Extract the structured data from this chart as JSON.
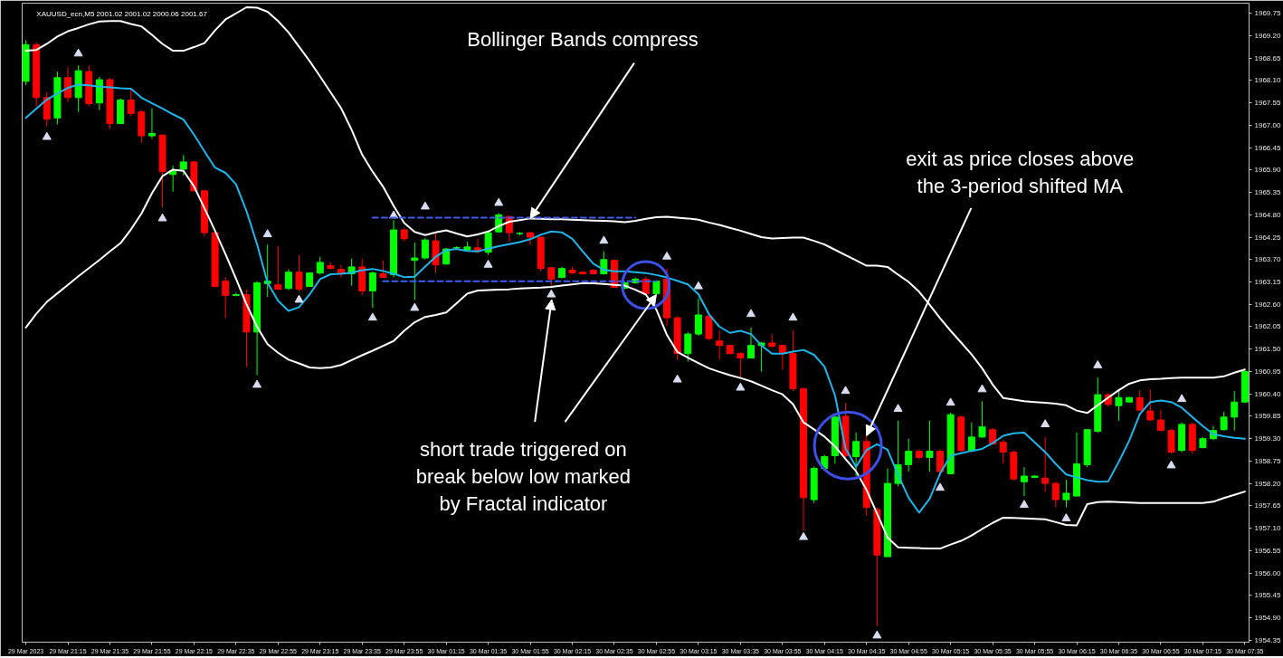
{
  "chart_data": {
    "type": "candlestick",
    "title": "XAUUSD_ecn,M5  2001.02 2001.02 2000.06 2001.67",
    "categories": [
      "29 Mar 2023",
      null,
      null,
      null,
      "29 Mar 21:15",
      null,
      null,
      null,
      "29 Mar 21:35",
      null,
      null,
      null,
      "29 Mar 21:55",
      null,
      null,
      null,
      "29 Mar 22:15",
      null,
      null,
      null,
      "29 Mar 22:35",
      null,
      null,
      null,
      "29 Mar 22:55",
      null,
      null,
      null,
      "29 Mar 23:15",
      null,
      null,
      null,
      "29 Mar 23:35",
      null,
      null,
      null,
      "29 Mar 23:55",
      null,
      null,
      null,
      "30 Mar 01:15",
      null,
      null,
      null,
      "30 Mar 01:35",
      null,
      null,
      null,
      "30 Mar 01:55",
      null,
      null,
      null,
      "30 Mar 02:15",
      null,
      null,
      null,
      "30 Mar 02:35",
      null,
      null,
      null,
      "30 Mar 02:55",
      null,
      null,
      null,
      "30 Mar 03:15",
      null,
      null,
      null,
      "30 Mar 03:35",
      null,
      null,
      null,
      "30 Mar 03:55",
      null,
      null,
      null,
      "30 Mar 04:15",
      null,
      null,
      null,
      "30 Mar 04:35",
      null,
      null,
      null,
      "30 Mar 04:55",
      null,
      null,
      null,
      "30 Mar 05:15",
      null,
      null,
      null,
      "30 Mar 05:35",
      null,
      null,
      null,
      "30 Mar 05:55",
      null,
      null,
      null,
      "30 Mar 06:15",
      null,
      null,
      null,
      "30 Mar 06:35",
      null,
      null,
      null,
      "30 Mar 06:55",
      null,
      null,
      null,
      "30 Mar 07:15",
      null,
      null,
      null,
      "30 Mar 07:35"
    ],
    "ohlc": [
      [
        1968.08,
        1969.09,
        1967.99,
        1968.98
      ],
      [
        1968.98,
        1969.05,
        1967.46,
        1967.68
      ],
      [
        1967.68,
        1967.81,
        1966.98,
        1967.15
      ],
      [
        1967.18,
        1968.32,
        1967.02,
        1968.17
      ],
      [
        1968.17,
        1968.43,
        1967.57,
        1967.68
      ],
      [
        1967.68,
        1968.47,
        1967.33,
        1968.34
      ],
      [
        1968.32,
        1968.47,
        1967.46,
        1967.53
      ],
      [
        1967.55,
        1968.19,
        1967.37,
        1968.12
      ],
      [
        1968.12,
        1968.17,
        1966.91,
        1967.04
      ],
      [
        1967.04,
        1967.66,
        1967.04,
        1967.62
      ],
      [
        1967.62,
        1967.88,
        1967.22,
        1967.29
      ],
      [
        1967.33,
        1967.37,
        1966.56,
        1966.74
      ],
      [
        1966.74,
        1967.42,
        1966.67,
        1966.8
      ],
      [
        1966.76,
        1966.76,
        1964.98,
        1965.86
      ],
      [
        1965.79,
        1966.01,
        1965.37,
        1965.88
      ],
      [
        1965.92,
        1966.27,
        1965.77,
        1966.1
      ],
      [
        1966.1,
        1966.12,
        1965.37,
        1965.39
      ],
      [
        1965.39,
        1965.39,
        1964.27,
        1964.36
      ],
      [
        1964.36,
        1964.38,
        1963.02,
        1963.04
      ],
      [
        1963.17,
        1963.26,
        1962.27,
        1962.82
      ],
      [
        1962.82,
        1962.89,
        1962.8,
        1962.84
      ],
      [
        1962.84,
        1962.97,
        1961.06,
        1961.92
      ],
      [
        1961.92,
        1963.17,
        1960.86,
        1963.13
      ],
      [
        1963.11,
        1964.07,
        1962.78,
        1963.17
      ],
      [
        1963.08,
        1964.03,
        1962.97,
        1962.97
      ],
      [
        1962.99,
        1963.46,
        1962.95,
        1963.39
      ],
      [
        1963.39,
        1963.81,
        1962.93,
        1962.97
      ],
      [
        1963.04,
        1963.39,
        1963.02,
        1963.37
      ],
      [
        1963.37,
        1963.77,
        1963.33,
        1963.63
      ],
      [
        1963.55,
        1963.63,
        1963.46,
        1963.48
      ],
      [
        1963.46,
        1963.57,
        1963.26,
        1963.37
      ],
      [
        1963.35,
        1963.72,
        1963.06,
        1963.52
      ],
      [
        1963.52,
        1963.72,
        1962.82,
        1962.93
      ],
      [
        1962.93,
        1963.41,
        1962.51,
        1963.37
      ],
      [
        1963.35,
        1963.68,
        1963.26,
        1963.26
      ],
      [
        1963.33,
        1964.67,
        1963.26,
        1964.43
      ],
      [
        1964.43,
        1964.47,
        1964.16,
        1964.21
      ],
      [
        1963.68,
        1964.12,
        1962.71,
        1963.74
      ],
      [
        1963.74,
        1964.23,
        1963.7,
        1964.18
      ],
      [
        1964.16,
        1964.36,
        1963.37,
        1963.57
      ],
      [
        1963.59,
        1963.99,
        1963.57,
        1963.96
      ],
      [
        1963.99,
        1964.03,
        1963.94,
        1963.99
      ],
      [
        1963.94,
        1964.14,
        1963.9,
        1964.01
      ],
      [
        1963.99,
        1964.21,
        1963.85,
        1963.9
      ],
      [
        1963.88,
        1964.4,
        1963.81,
        1964.36
      ],
      [
        1964.38,
        1964.84,
        1964.36,
        1964.8
      ],
      [
        1964.76,
        1964.78,
        1964.14,
        1964.36
      ],
      [
        1964.34,
        1964.38,
        1964.29,
        1964.34
      ],
      [
        1964.36,
        1964.38,
        1964.07,
        1964.25
      ],
      [
        1964.25,
        1964.25,
        1963.41,
        1963.48
      ],
      [
        1963.5,
        1963.52,
        1963.06,
        1963.22
      ],
      [
        1963.26,
        1963.52,
        1963.24,
        1963.48
      ],
      [
        1963.44,
        1963.52,
        1963.35,
        1963.37
      ],
      [
        1963.39,
        1963.41,
        1963.33,
        1963.35
      ],
      [
        1963.44,
        1963.46,
        1963.33,
        1963.35
      ],
      [
        1963.35,
        1963.9,
        1963.33,
        1963.7
      ],
      [
        1963.68,
        1963.7,
        1963.0,
        1963.02
      ],
      [
        1963.0,
        1963.15,
        1962.97,
        1963.13
      ],
      [
        1963.13,
        1963.26,
        1963.11,
        1963.22
      ],
      [
        1963.22,
        1963.28,
        1962.84,
        1962.86
      ],
      [
        1962.86,
        1963.19,
        1962.84,
        1963.17
      ],
      [
        1963.22,
        1963.48,
        1962.07,
        1962.27
      ],
      [
        1962.27,
        1962.31,
        1961.24,
        1961.39
      ],
      [
        1961.39,
        1961.92,
        1961.19,
        1961.87
      ],
      [
        1961.87,
        1962.75,
        1961.83,
        1962.34
      ],
      [
        1962.31,
        1962.36,
        1961.72,
        1961.76
      ],
      [
        1961.7,
        1961.96,
        1961.24,
        1961.59
      ],
      [
        1961.59,
        1961.61,
        1961.37,
        1961.39
      ],
      [
        1961.39,
        1961.43,
        1960.8,
        1961.28
      ],
      [
        1961.28,
        1962.03,
        1961.28,
        1961.59
      ],
      [
        1961.59,
        1961.68,
        1960.95,
        1961.65
      ],
      [
        1961.65,
        1961.87,
        1961.54,
        1961.57
      ],
      [
        1961.59,
        1961.61,
        1960.99,
        1961.41
      ],
      [
        1961.39,
        1961.96,
        1960.47,
        1960.53
      ],
      [
        1960.53,
        1960.55,
        1957.03,
        1957.85
      ],
      [
        1957.8,
        1958.62,
        1957.72,
        1958.57
      ],
      [
        1958.57,
        1958.9,
        1958.53,
        1958.86
      ],
      [
        1958.88,
        1959.89,
        1958.68,
        1959.83
      ],
      [
        1959.85,
        1960.18,
        1958.84,
        1958.88
      ],
      [
        1958.86,
        1959.45,
        1958.38,
        1959.23
      ],
      [
        1959.23,
        1959.37,
        1957.41,
        1957.61
      ],
      [
        1957.56,
        1957.61,
        1954.7,
        1956.44
      ],
      [
        1956.4,
        1958.57,
        1956.4,
        1958.2
      ],
      [
        1958.2,
        1959.74,
        1958.13,
        1958.66
      ],
      [
        1958.66,
        1959.3,
        1958.49,
        1958.99
      ],
      [
        1958.99,
        1959.04,
        1958.79,
        1958.84
      ],
      [
        1958.84,
        1959.74,
        1958.49,
        1958.99
      ],
      [
        1958.99,
        1959.04,
        1958.44,
        1958.49
      ],
      [
        1958.44,
        1959.94,
        1958.42,
        1959.89
      ],
      [
        1959.83,
        1959.87,
        1958.97,
        1959.01
      ],
      [
        1959.01,
        1959.7,
        1958.97,
        1959.34
      ],
      [
        1959.34,
        1960.22,
        1959.32,
        1959.59
      ],
      [
        1959.52,
        1959.56,
        1959.15,
        1959.17
      ],
      [
        1959.21,
        1959.26,
        1958.68,
        1958.97
      ],
      [
        1958.97,
        1959.01,
        1958.27,
        1958.31
      ],
      [
        1958.24,
        1958.6,
        1957.89,
        1958.38
      ],
      [
        1958.35,
        1958.4,
        1958.33,
        1958.38
      ],
      [
        1958.33,
        1959.34,
        1958.0,
        1958.2
      ],
      [
        1958.2,
        1958.24,
        1957.61,
        1957.8
      ],
      [
        1957.8,
        1958.29,
        1957.61,
        1957.96
      ],
      [
        1957.89,
        1959.45,
        1957.87,
        1958.68
      ],
      [
        1958.66,
        1959.54,
        1958.6,
        1959.52
      ],
      [
        1959.48,
        1960.8,
        1959.45,
        1960.38
      ],
      [
        1960.38,
        1960.42,
        1960.09,
        1960.14
      ],
      [
        1960.11,
        1960.51,
        1959.74,
        1960.31
      ],
      [
        1960.2,
        1960.33,
        1960.18,
        1960.31
      ],
      [
        1960.31,
        1960.49,
        1959.98,
        1960.0
      ],
      [
        1959.98,
        1960.51,
        1959.74,
        1959.76
      ],
      [
        1959.76,
        1960.0,
        1959.48,
        1959.5
      ],
      [
        1959.5,
        1959.54,
        1958.93,
        1958.97
      ],
      [
        1959.01,
        1959.7,
        1958.97,
        1959.65
      ],
      [
        1959.65,
        1959.7,
        1958.93,
        1959.01
      ],
      [
        1959.08,
        1959.34,
        1959.06,
        1959.3
      ],
      [
        1959.3,
        1959.61,
        1959.26,
        1959.5
      ],
      [
        1959.52,
        1959.96,
        1959.5,
        1959.83
      ],
      [
        1959.83,
        1960.47,
        1959.5,
        1960.2
      ],
      [
        1960.2,
        1961.0,
        1960.18,
        1960.95
      ]
    ],
    "colors": [
      "#00ff00",
      "#ff0000",
      "#ff0000",
      "#00ff00",
      "#ff0000",
      "#00ff00",
      "#ff0000",
      "#00ff00",
      "#ff0000",
      "#00ff00",
      "#ff0000",
      "#ff0000",
      "#00ff00",
      "#ff0000",
      "#00ff00",
      "#00ff00",
      "#ff0000",
      "#ff0000",
      "#ff0000",
      "#ff0000",
      "#00ff00",
      "#ff0000",
      "#00ff00",
      "#00ff00",
      "#ff0000",
      "#00ff00",
      "#ff0000",
      "#00ff00",
      "#00ff00",
      "#ff0000",
      "#ff0000",
      "#00ff00",
      "#ff0000",
      "#00ff00",
      "#ff0000",
      "#00ff00",
      "#ff0000",
      "#00ff00",
      "#00ff00",
      "#ff0000",
      "#00ff00",
      "#00ff00",
      "#00ff00",
      "#ff0000",
      "#00ff00",
      "#00ff00",
      "#ff0000",
      "#00ff00",
      "#ff0000",
      "#ff0000",
      "#ff0000",
      "#00ff00",
      "#ff0000",
      "#ff0000",
      "#ff0000",
      "#00ff00",
      "#ff0000",
      "#00ff00",
      "#00ff00",
      "#ff0000",
      "#00ff00",
      "#ff0000",
      "#ff0000",
      "#00ff00",
      "#00ff00",
      "#ff0000",
      "#ff0000",
      "#ff0000",
      "#ff0000",
      "#00ff00",
      "#00ff00",
      "#ff0000",
      "#ff0000",
      "#ff0000",
      "#ff0000",
      "#00ff00",
      "#00ff00",
      "#00ff00",
      "#ff0000",
      "#00ff00",
      "#ff0000",
      "#ff0000",
      "#00ff00",
      "#00ff00",
      "#00ff00",
      "#ff0000",
      "#00ff00",
      "#ff0000",
      "#00ff00",
      "#ff0000",
      "#00ff00",
      "#00ff00",
      "#ff0000",
      "#ff0000",
      "#ff0000",
      "#00ff00",
      "#00ff00",
      "#ff0000",
      "#ff0000",
      "#00ff00",
      "#00ff00",
      "#00ff00",
      "#00ff00",
      "#ff0000",
      "#00ff00",
      "#00ff00",
      "#ff0000",
      "#ff0000",
      "#ff0000",
      "#ff0000",
      "#00ff00",
      "#ff0000",
      "#00ff00",
      "#00ff00",
      "#00ff00",
      "#00ff00",
      "#00ff00"
    ],
    "series": [
      {
        "type": "line",
        "color": "#ffffff",
        "values": [
          1962.03,
          1962.37,
          1962.66,
          1962.87,
          1963.08,
          1963.29,
          1963.49,
          1963.69,
          1963.9,
          1964.1,
          1964.44,
          1964.83,
          1965.33,
          1965.75,
          1965.91,
          1965.88,
          1965.5,
          1964.96,
          1964.41,
          1963.83,
          1963.23,
          1962.6,
          1962.05,
          1961.62,
          1961.41,
          1961.24,
          1961.15,
          1961.05,
          1961.03,
          1961.05,
          1961.11,
          1961.23,
          1961.35,
          1961.46,
          1961.58,
          1961.7,
          1961.95,
          1962.16,
          1962.29,
          1962.34,
          1962.4,
          1962.63,
          1962.86,
          1962.94,
          1962.95,
          1962.96,
          1962.97,
          1962.99,
          1963,
          1963.01,
          1963.03,
          1963.06,
          1963.09,
          1963.12,
          1963.12,
          1963.1,
          1963.08,
          1963.06,
          1962.96,
          1962.84,
          1962.47,
          1961.85,
          1961.43,
          1961.29,
          1961.16,
          1961.03,
          1960.94,
          1960.86,
          1960.79,
          1960.71,
          1960.6,
          1960.49,
          1960.39,
          1960.15,
          1959.7,
          1959.53,
          1959.35,
          1959.11,
          1958.8,
          1958.5,
          1958.04,
          1957.46,
          1956.87,
          1956.63,
          1956.62,
          1956.61,
          1956.6,
          1956.6,
          1956.7,
          1956.79,
          1956.92,
          1957.08,
          1957.23,
          1957.36,
          1957.35,
          1957.34,
          1957.33,
          1957.32,
          1957.25,
          1957.18,
          1957.17,
          1957.69,
          1957.74,
          1957.75,
          1957.74,
          1957.73,
          1957.72,
          1957.72,
          1957.72,
          1957.72,
          1957.72,
          1957.72,
          1957.72,
          1957.75,
          1957.84,
          1957.92,
          1958
        ]
      },
      {
        "type": "line",
        "color": "#ffffff",
        "values": [
          1968.83,
          1968.85,
          1969,
          1969.18,
          1969.31,
          1969.39,
          1969.48,
          1969.55,
          1969.56,
          1969.56,
          1969.49,
          1969.43,
          1969.22,
          1969,
          1968.83,
          1968.83,
          1968.92,
          1969.02,
          1969.33,
          1969.6,
          1969.75,
          1969.9,
          1969.89,
          1969.79,
          1969.56,
          1969.28,
          1968.93,
          1968.58,
          1968.2,
          1967.81,
          1967.42,
          1966.89,
          1966.28,
          1965.86,
          1965.49,
          1965.02,
          1964.6,
          1964.38,
          1964.3,
          1964.37,
          1964.42,
          1964.34,
          1964.27,
          1964.32,
          1964.39,
          1964.52,
          1964.63,
          1964.67,
          1964.71,
          1964.7,
          1964.69,
          1964.69,
          1964.68,
          1964.67,
          1964.66,
          1964.65,
          1964.64,
          1964.62,
          1964.65,
          1964.7,
          1964.74,
          1964.75,
          1964.73,
          1964.71,
          1964.68,
          1964.61,
          1964.55,
          1964.48,
          1964.41,
          1964.33,
          1964.25,
          1964.22,
          1964.23,
          1964.24,
          1964.24,
          1964.16,
          1964.07,
          1963.94,
          1963.81,
          1963.68,
          1963.55,
          1963.55,
          1963.52,
          1963.33,
          1963.15,
          1962.91,
          1962.59,
          1962.26,
          1961.95,
          1961.66,
          1961.37,
          1961.03,
          1960.63,
          1960.3,
          1960.26,
          1960.22,
          1960.2,
          1960.18,
          1960.16,
          1960.12,
          1959.99,
          1959.93,
          1960.12,
          1960.31,
          1960.49,
          1960.65,
          1960.73,
          1960.76,
          1960.77,
          1960.79,
          1960.8,
          1960.8,
          1960.8,
          1960.8,
          1960.83,
          1960.92,
          1961
        ]
      },
      {
        "type": "line",
        "color": "#1eb6ea",
        "values": [
          1967.18,
          1967.41,
          1967.63,
          1967.78,
          1967.92,
          1968,
          1967.98,
          1967.95,
          1967.93,
          1967.91,
          1967.9,
          1967.68,
          1967.54,
          1967.41,
          1967.27,
          1967.14,
          1966.77,
          1966.36,
          1965.96,
          1965.83,
          1965.55,
          1964.89,
          1964.08,
          1963.13,
          1962.69,
          1962.44,
          1962.53,
          1962.84,
          1963.22,
          1963.34,
          1963.35,
          1963.38,
          1963.44,
          1963.47,
          1963.42,
          1963.35,
          1963.27,
          1963.28,
          1963.53,
          1963.77,
          1963.93,
          1963.96,
          1963.91,
          1963.9,
          1963.97,
          1964.03,
          1964.08,
          1964.13,
          1964.2,
          1964.31,
          1964.39,
          1964.37,
          1964.21,
          1963.9,
          1963.6,
          1963.45,
          1963.41,
          1963.41,
          1963.39,
          1963.37,
          1963.32,
          1963.26,
          1963.18,
          1963.09,
          1962.85,
          1962.36,
          1962.05,
          1961.9,
          1961.95,
          1961.87,
          1961.59,
          1961.39,
          1961.39,
          1961.44,
          1961.48,
          1961.36,
          1961.07,
          1960.36,
          1959.06,
          1958.61,
          1959.02,
          1959.16,
          1959.03,
          1958.41,
          1957.85,
          1957.48,
          1957.82,
          1958.44,
          1958.88,
          1958.94,
          1959,
          1959.05,
          1959.19,
          1959.37,
          1959.43,
          1959.45,
          1959.21,
          1958.97,
          1958.68,
          1958.42,
          1958.35,
          1958.28,
          1958.24,
          1958.25,
          1958.73,
          1959.25,
          1959.9,
          1960.2,
          1960.24,
          1960.2,
          1960.06,
          1959.83,
          1959.61,
          1959.41,
          1959.36,
          1959.32,
          1959.3
        ]
      },
      {
        "type": "scatter",
        "marker": "triangle",
        "color": "#d8dcef",
        "values": [
          null,
          null,
          null,
          null,
          null,
          1968.76,
          null,
          null,
          null,
          null,
          null,
          null,
          null,
          null,
          null,
          null,
          null,
          null,
          null,
          null,
          null,
          null,
          null,
          1964.32,
          null,
          null,
          null,
          null,
          null,
          null,
          null,
          null,
          null,
          null,
          null,
          1964.78,
          null,
          null,
          1965.0,
          null,
          null,
          null,
          null,
          null,
          null,
          1965.09,
          null,
          null,
          null,
          null,
          null,
          null,
          null,
          null,
          null,
          1964.16,
          null,
          null,
          null,
          null,
          null,
          1963.77,
          null,
          null,
          1963.04,
          null,
          null,
          null,
          null,
          1962.36,
          null,
          null,
          null,
          1962.27,
          null,
          null,
          null,
          null,
          1960.47,
          null,
          null,
          null,
          null,
          1960.03,
          null,
          null,
          null,
          null,
          1960.18,
          null,
          null,
          1960.51,
          null,
          null,
          null,
          null,
          null,
          1959.65,
          null,
          null,
          null,
          null,
          1961.1,
          null,
          null,
          null,
          null,
          null,
          null,
          null,
          1960.27,
          null,
          null,
          null,
          null,
          null,
          null
        ]
      },
      {
        "type": "scatter",
        "marker": "triangle",
        "color": "#d8dcef",
        "values": [
          null,
          null,
          1966.71,
          null,
          null,
          null,
          null,
          null,
          null,
          null,
          null,
          null,
          null,
          1964.71,
          null,
          null,
          null,
          null,
          null,
          null,
          null,
          null,
          1960.62,
          null,
          null,
          null,
          1962.71,
          null,
          null,
          null,
          null,
          null,
          null,
          1962.27,
          null,
          null,
          null,
          1962.51,
          null,
          null,
          null,
          null,
          null,
          null,
          1963.57,
          null,
          null,
          null,
          null,
          null,
          1962.84,
          null,
          null,
          null,
          null,
          null,
          null,
          null,
          null,
          null,
          null,
          null,
          1960.75,
          null,
          null,
          null,
          null,
          null,
          1960.55,
          null,
          null,
          null,
          null,
          null,
          1956.88,
          null,
          null,
          null,
          null,
          null,
          null,
          1954.46,
          null,
          null,
          null,
          null,
          null,
          1958.09,
          null,
          null,
          null,
          null,
          null,
          null,
          null,
          1957.67,
          null,
          null,
          null,
          1957.34,
          null,
          null,
          null,
          null,
          null,
          null,
          null,
          null,
          null,
          1958.64,
          null,
          null,
          null,
          null,
          null,
          null,
          null
        ]
      },
      {
        "type": "line",
        "line_style": "dashed",
        "color": "#3d5ef0",
        "values": [
          null,
          null,
          null,
          null,
          null,
          null,
          null,
          null,
          null,
          null,
          null,
          null,
          null,
          null,
          null,
          null,
          null,
          null,
          null,
          null,
          null,
          null,
          null,
          null,
          null,
          null,
          null,
          null,
          null,
          null,
          null,
          null,
          null,
          1964.73,
          1964.73,
          1964.73,
          1964.73,
          1964.73,
          1964.73,
          1964.73,
          1964.73,
          1964.73,
          1964.73,
          1964.73,
          1964.73,
          1964.73,
          1964.73,
          1964.73,
          1964.73,
          1964.73,
          1964.73,
          1964.73,
          1964.73,
          1964.73,
          1964.73,
          1964.73,
          1964.73,
          1964.73,
          1964.73,
          null,
          null,
          null,
          null,
          null,
          null,
          null,
          null,
          null,
          null,
          null,
          null,
          null,
          null,
          null,
          null,
          null,
          null,
          null,
          null,
          null,
          null,
          null,
          null,
          null,
          null,
          null,
          null,
          null,
          null,
          null,
          null,
          null,
          null,
          null,
          null,
          null,
          null,
          null,
          null,
          null,
          null,
          null,
          null,
          null,
          null,
          null,
          null,
          null,
          null,
          null,
          null,
          null,
          null,
          null,
          null,
          null,
          null
        ]
      },
      {
        "type": "line",
        "line_style": "dashed",
        "color": "#3d5ef0",
        "values": [
          null,
          null,
          null,
          null,
          null,
          null,
          null,
          null,
          null,
          null,
          null,
          null,
          null,
          null,
          null,
          null,
          null,
          null,
          null,
          null,
          null,
          null,
          null,
          null,
          null,
          null,
          null,
          null,
          null,
          null,
          null,
          null,
          null,
          null,
          1963.17,
          1963.17,
          1963.17,
          1963.17,
          1963.17,
          1963.17,
          1963.17,
          1963.17,
          1963.17,
          1963.17,
          1963.17,
          1963.17,
          1963.17,
          1963.17,
          1963.17,
          1963.17,
          1963.17,
          1963.17,
          1963.17,
          1963.17,
          1963.17,
          1963.17,
          1963.17,
          1963.17,
          1963.17,
          1963.17,
          1963.17,
          null,
          null,
          null,
          null,
          null,
          null,
          null,
          null,
          null,
          null,
          null,
          null,
          null,
          null,
          null,
          null,
          null,
          null,
          null,
          null,
          null,
          null,
          null,
          null,
          null,
          null,
          null,
          null,
          null,
          null,
          null,
          null,
          null,
          null,
          null,
          null,
          null,
          null,
          null,
          null,
          null,
          null,
          null,
          null,
          null,
          null,
          null,
          null,
          null,
          null,
          null,
          null,
          null,
          null,
          null,
          null
        ]
      }
    ],
    "ylim": [
      1954.3,
      1970.0
    ],
    "yticks": [
      {
        "value": 1954.35,
        "label": "1954.35"
      },
      {
        "value": 1954.9,
        "label": "1954.90"
      },
      {
        "value": 1955.45,
        "label": "1955.45"
      },
      {
        "value": 1956.0,
        "label": "1956.00"
      },
      {
        "value": 1956.55,
        "label": "1956.55"
      },
      {
        "value": 1957.1,
        "label": "1957.10"
      },
      {
        "value": 1957.65,
        "label": "1957.65"
      },
      {
        "value": 1958.2,
        "label": "1958.20"
      },
      {
        "value": 1958.75,
        "label": "1958.75"
      },
      {
        "value": 1959.3,
        "label": "1959.30"
      },
      {
        "value": 1959.85,
        "label": "1959.85"
      },
      {
        "value": 1960.4,
        "label": "1960.40"
      },
      {
        "value": 1960.95,
        "label": "1960.95"
      },
      {
        "value": 1961.5,
        "label": "1961.50"
      },
      {
        "value": 1962.05,
        "label": "1962.05"
      },
      {
        "value": 1962.6,
        "label": "1962.60"
      },
      {
        "value": 1963.15,
        "label": "1963.15"
      },
      {
        "value": 1963.7,
        "label": "1963.70"
      },
      {
        "value": 1964.25,
        "label": "1964.25"
      },
      {
        "value": 1964.8,
        "label": "1964.80"
      },
      {
        "value": 1965.35,
        "label": "1965.35"
      },
      {
        "value": 1965.9,
        "label": "1965.90"
      },
      {
        "value": 1966.45,
        "label": "1966.45"
      },
      {
        "value": 1967.0,
        "label": "1967.00"
      },
      {
        "value": 1967.55,
        "label": "1967.55"
      },
      {
        "value": 1968.1,
        "label": "1968.10"
      },
      {
        "value": 1968.65,
        "label": "1968.65"
      },
      {
        "value": 1969.2,
        "label": "1969.20"
      },
      {
        "value": 1969.75,
        "label": "1969.75"
      }
    ],
    "annotations": [
      {
        "text": "Bollinger Bands compress",
        "x": "30 Mar 01:55",
        "y": 1964.71
      },
      {
        "text": "exit as price closes above\nthe 3-period shifted MA",
        "x": "30 Mar 04:35",
        "y": 1959.37
      },
      {
        "text": "short trade triggered on\nbreak below low marked\nby Fractal indicator",
        "x": "30 Mar 02:55",
        "y": 1962.84
      }
    ]
  }
}
